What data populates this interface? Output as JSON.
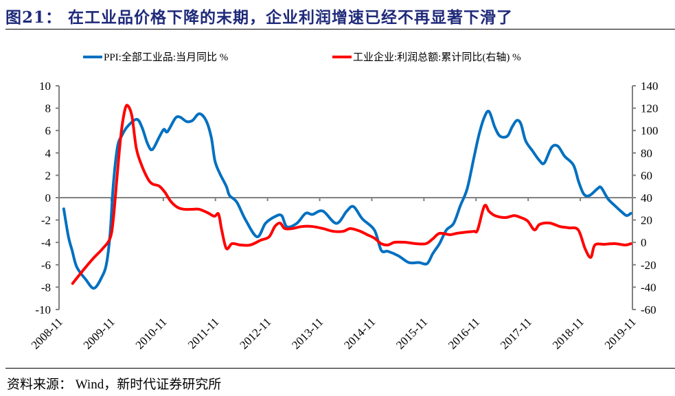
{
  "header": {
    "title": "图21： 在工业品价格下降的末期，企业利润增速已经不再显著下滑了"
  },
  "footer": {
    "source": "资料来源：  Wind，新时代证券研究所"
  },
  "colors": {
    "ppi": "#0070c0",
    "profit": "#ff0000",
    "axis": "#808080",
    "title": "#1f2a7a"
  },
  "chart_data": {
    "type": "line",
    "title": "在工业品价格下降的末期，企业利润增速已经不再显著下滑了",
    "xlabel": "",
    "ylabel_left": "%",
    "ylabel_right": "%",
    "categories": [
      "2008-11",
      "2009-11",
      "2010-11",
      "2011-11",
      "2012-11",
      "2013-11",
      "2014-11",
      "2015-11",
      "2016-11",
      "2017-11",
      "2018-11",
      "2019-11"
    ],
    "x_range": [
      "2008-11",
      "2019-11"
    ],
    "y_left": {
      "min": -10,
      "max": 10,
      "step": 2,
      "ticks": [
        10,
        8,
        6,
        4,
        2,
        0,
        -2,
        -4,
        -6,
        -8,
        -10
      ]
    },
    "y_right": {
      "min": -60,
      "max": 140,
      "step": 20,
      "ticks": [
        140,
        120,
        100,
        80,
        60,
        40,
        20,
        0,
        -20,
        -40,
        -60
      ]
    },
    "grid": false,
    "legend_position": "top",
    "series": [
      {
        "name": "PPI:全部工业品:当月同比 %",
        "axis": "left",
        "color": "#0070c0",
        "points": [
          [
            0.09,
            -1.0
          ],
          [
            0.18,
            -3.5
          ],
          [
            0.25,
            -4.7
          ],
          [
            0.34,
            -6.2
          ],
          [
            0.51,
            -7.3
          ],
          [
            0.67,
            -8.1
          ],
          [
            0.82,
            -7.1
          ],
          [
            0.91,
            -5.9
          ],
          [
            0.98,
            -3.2
          ],
          [
            1.04,
            1.1
          ],
          [
            1.12,
            4.5
          ],
          [
            1.21,
            5.6
          ],
          [
            1.32,
            6.4
          ],
          [
            1.49,
            7.0
          ],
          [
            1.59,
            6.3
          ],
          [
            1.7,
            4.8
          ],
          [
            1.79,
            4.3
          ],
          [
            1.92,
            5.4
          ],
          [
            2.01,
            6.1
          ],
          [
            2.08,
            5.9
          ],
          [
            2.23,
            7.1
          ],
          [
            2.32,
            7.2
          ],
          [
            2.45,
            6.8
          ],
          [
            2.56,
            6.9
          ],
          [
            2.69,
            7.5
          ],
          [
            2.82,
            6.9
          ],
          [
            2.92,
            5.4
          ],
          [
            2.99,
            3.3
          ],
          [
            3.08,
            2.2
          ],
          [
            3.21,
            1.0
          ],
          [
            3.27,
            0.2
          ],
          [
            3.41,
            -0.4
          ],
          [
            3.58,
            -2.0
          ],
          [
            3.8,
            -3.5
          ],
          [
            3.96,
            -2.3
          ],
          [
            4.14,
            -1.7
          ],
          [
            4.27,
            -1.6
          ],
          [
            4.37,
            -2.6
          ],
          [
            4.56,
            -2.3
          ],
          [
            4.73,
            -1.4
          ],
          [
            4.86,
            -1.5
          ],
          [
            5.06,
            -1.2
          ],
          [
            5.32,
            -2.3
          ],
          [
            5.52,
            -1.2
          ],
          [
            5.65,
            -0.8
          ],
          [
            5.82,
            -1.9
          ],
          [
            6.05,
            -2.9
          ],
          [
            6.18,
            -4.7
          ],
          [
            6.31,
            -4.8
          ],
          [
            6.51,
            -5.2
          ],
          [
            6.71,
            -5.8
          ],
          [
            6.9,
            -5.8
          ],
          [
            7.06,
            -5.9
          ],
          [
            7.17,
            -5.0
          ],
          [
            7.3,
            -4.1
          ],
          [
            7.43,
            -2.9
          ],
          [
            7.57,
            -2.3
          ],
          [
            7.7,
            -0.7
          ],
          [
            7.83,
            0.8
          ],
          [
            7.96,
            3.6
          ],
          [
            8.06,
            5.7
          ],
          [
            8.16,
            7.2
          ],
          [
            8.25,
            7.7
          ],
          [
            8.36,
            6.3
          ],
          [
            8.46,
            5.5
          ],
          [
            8.6,
            5.5
          ],
          [
            8.69,
            6.3
          ],
          [
            8.78,
            6.9
          ],
          [
            8.86,
            6.6
          ],
          [
            8.95,
            5.1
          ],
          [
            9.08,
            4.2
          ],
          [
            9.22,
            3.3
          ],
          [
            9.31,
            3.1
          ],
          [
            9.45,
            4.5
          ],
          [
            9.57,
            4.6
          ],
          [
            9.7,
            3.7
          ],
          [
            9.87,
            2.9
          ],
          [
            9.97,
            1.4
          ],
          [
            10.07,
            0.3
          ],
          [
            10.18,
            0.2
          ],
          [
            10.33,
            0.8
          ],
          [
            10.4,
            0.9
          ],
          [
            10.53,
            -0.1
          ],
          [
            10.66,
            -0.7
          ],
          [
            10.8,
            -1.3
          ],
          [
            10.89,
            -1.6
          ],
          [
            10.97,
            -1.4
          ]
        ]
      },
      {
        "name": "工业企业:利润总额:累计同比(右轴) %",
        "axis": "right",
        "color": "#ff0000",
        "points": [
          [
            0.26,
            -36.7
          ],
          [
            0.45,
            -25.6
          ],
          [
            0.65,
            -14.6
          ],
          [
            0.84,
            -5.4
          ],
          [
            0.98,
            3.8
          ],
          [
            1.04,
            20.4
          ],
          [
            1.11,
            57.2
          ],
          [
            1.19,
            97.1
          ],
          [
            1.27,
            119.8
          ],
          [
            1.33,
            121.6
          ],
          [
            1.4,
            112.4
          ],
          [
            1.48,
            84.8
          ],
          [
            1.57,
            70.7
          ],
          [
            1.7,
            57.2
          ],
          [
            1.79,
            52.3
          ],
          [
            1.92,
            50.4
          ],
          [
            2.03,
            44.9
          ],
          [
            2.14,
            36.9
          ],
          [
            2.27,
            31.4
          ],
          [
            2.4,
            29.6
          ],
          [
            2.56,
            29.6
          ],
          [
            2.69,
            29.6
          ],
          [
            2.85,
            26.5
          ],
          [
            2.98,
            23.4
          ],
          [
            3.06,
            25.3
          ],
          [
            3.12,
            11.2
          ],
          [
            3.21,
            -5.4
          ],
          [
            3.32,
            -1.1
          ],
          [
            3.48,
            -2.3
          ],
          [
            3.67,
            -2.3
          ],
          [
            3.87,
            2.0
          ],
          [
            4.03,
            5.0
          ],
          [
            4.14,
            14.2
          ],
          [
            4.24,
            17.3
          ],
          [
            4.33,
            12.4
          ],
          [
            4.47,
            12.4
          ],
          [
            4.66,
            14.2
          ],
          [
            4.86,
            14.2
          ],
          [
            5.06,
            12.4
          ],
          [
            5.26,
            9.9
          ],
          [
            5.45,
            9.9
          ],
          [
            5.59,
            12.4
          ],
          [
            5.78,
            9.9
          ],
          [
            5.91,
            6.9
          ],
          [
            6.05,
            3.8
          ],
          [
            6.18,
            -1.1
          ],
          [
            6.31,
            -2.3
          ],
          [
            6.44,
            0.1
          ],
          [
            6.64,
            0.1
          ],
          [
            6.84,
            -1.1
          ],
          [
            7.04,
            -1.1
          ],
          [
            7.17,
            3.2
          ],
          [
            7.3,
            8.1
          ],
          [
            7.5,
            6.9
          ],
          [
            7.63,
            8.1
          ],
          [
            7.83,
            9.3
          ],
          [
            7.96,
            9.9
          ],
          [
            8.03,
            11.2
          ],
          [
            8.16,
            32.6
          ],
          [
            8.25,
            27.7
          ],
          [
            8.36,
            24.0
          ],
          [
            8.56,
            22.2
          ],
          [
            8.73,
            24.0
          ],
          [
            8.86,
            22.2
          ],
          [
            8.99,
            19.1
          ],
          [
            9.12,
            11.2
          ],
          [
            9.22,
            16.1
          ],
          [
            9.41,
            17.3
          ],
          [
            9.61,
            14.2
          ],
          [
            9.78,
            13.0
          ],
          [
            9.96,
            11.2
          ],
          [
            10.09,
            -5.4
          ],
          [
            10.2,
            -13.4
          ],
          [
            10.28,
            -2.3
          ],
          [
            10.46,
            -1.7
          ],
          [
            10.66,
            -1.1
          ],
          [
            10.86,
            -2.3
          ],
          [
            10.97,
            -1.1
          ]
        ]
      }
    ]
  },
  "legend": {
    "items": [
      {
        "label": "PPI:全部工业品:当月同比 %",
        "color": "#0070c0"
      },
      {
        "label": "工业企业:利润总额:累计同比(右轴) %",
        "color": "#ff0000"
      }
    ]
  }
}
